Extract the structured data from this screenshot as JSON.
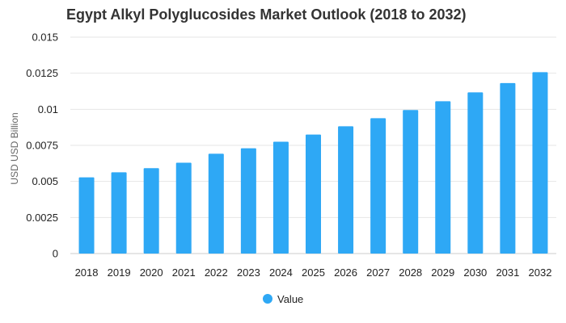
{
  "chart_data": {
    "type": "bar",
    "title": "Egypt Alkyl Polyglucosides Market Outlook (2018 to 2032)",
    "xlabel": "",
    "ylabel": "USD USD Billion",
    "categories": [
      "2018",
      "2019",
      "2020",
      "2021",
      "2022",
      "2023",
      "2024",
      "2025",
      "2026",
      "2027",
      "2028",
      "2029",
      "2030",
      "2031",
      "2032"
    ],
    "series": [
      {
        "name": "Value",
        "color": "#2ea8f5",
        "values": [
          0.00528,
          0.00563,
          0.00592,
          0.0063,
          0.00692,
          0.0073,
          0.00775,
          0.00825,
          0.00882,
          0.00938,
          0.00995,
          0.01056,
          0.01117,
          0.01182,
          0.01257
        ]
      }
    ],
    "ylim": [
      0,
      0.015
    ],
    "yticks": [
      "0",
      "0.0025",
      "0.005",
      "0.0075",
      "0.01",
      "0.0125",
      "0.015"
    ],
    "grid": true,
    "legend_position": "bottom-center"
  }
}
